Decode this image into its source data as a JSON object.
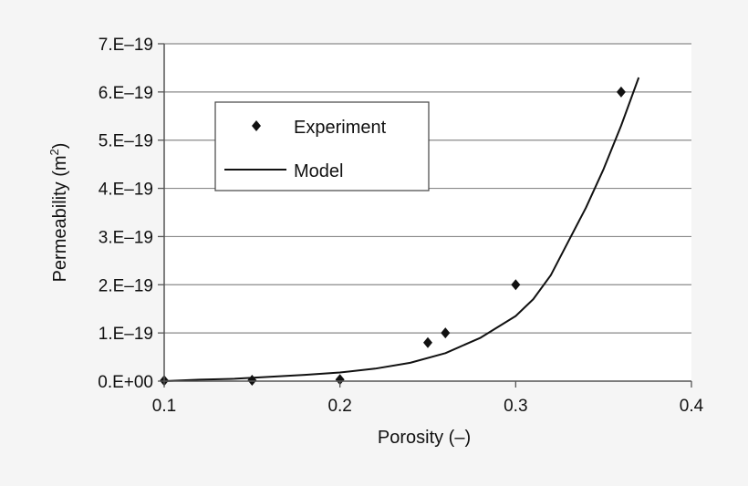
{
  "chart_data": {
    "type": "scatter",
    "xlabel": "Porosity (–)",
    "ylabel_main": "Permeability (m",
    "ylabel_sup": "2",
    "ylabel_end": ")",
    "xlim": [
      0.1,
      0.4
    ],
    "ylim": [
      0,
      7e-19
    ],
    "x_ticks": [
      0.1,
      0.2,
      0.3,
      0.4
    ],
    "x_tick_labels": [
      "0.1",
      "0.2",
      "0.3",
      "0.4"
    ],
    "y_ticks": [
      0,
      1e-19,
      2e-19,
      3e-19,
      4e-19,
      5e-19,
      6e-19,
      7e-19
    ],
    "y_tick_labels": [
      "0.E+00",
      "1.E–19",
      "2.E–19",
      "3.E–19",
      "4.E–19",
      "5.E–19",
      "6.E–19",
      "7.E–19"
    ],
    "grid": "horizontal",
    "legend_placement": "upper-left",
    "series": [
      {
        "name": "Experiment",
        "kind": "points",
        "marker": "diamond",
        "x": [
          0.1,
          0.15,
          0.2,
          0.25,
          0.26,
          0.3,
          0.36
        ],
        "y": [
          1.2e-21,
          2e-21,
          3.4e-21,
          8e-20,
          1e-19,
          2e-19,
          6e-19
        ]
      },
      {
        "name": "Model",
        "kind": "line",
        "x": [
          0.1,
          0.12,
          0.14,
          0.16,
          0.18,
          0.2,
          0.22,
          0.24,
          0.26,
          0.28,
          0.3,
          0.31,
          0.32,
          0.33,
          0.34,
          0.35,
          0.36,
          0.37
        ],
        "y": [
          0,
          3e-21,
          5e-21,
          9e-21,
          1.3e-20,
          1.8e-20,
          2.6e-20,
          3.8e-20,
          5.8e-20,
          9e-20,
          1.35e-19,
          1.7e-19,
          2.2e-19,
          2.9e-19,
          3.6e-19,
          4.4e-19,
          5.3e-19,
          6.3e-19
        ]
      }
    ]
  }
}
